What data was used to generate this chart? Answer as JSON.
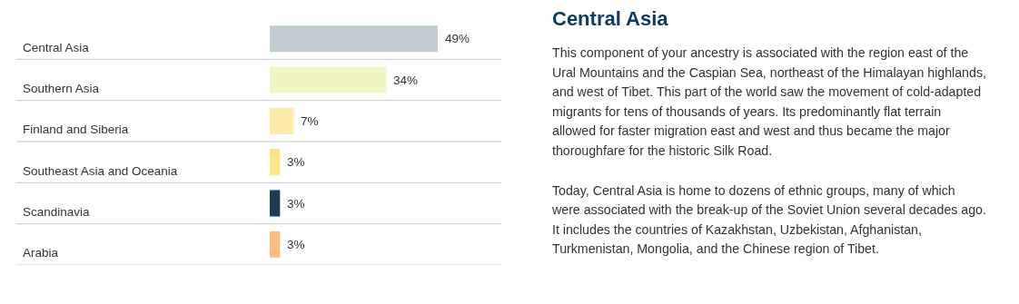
{
  "chart_data": [
    {
      "type": "bar",
      "orientation": "horizontal",
      "categories": [
        "Central Asia",
        "Southern Asia",
        "Finland and Siberia",
        "Southeast Asia and Oceania",
        "Scandinavia",
        "Arabia"
      ],
      "values": [
        49,
        34,
        7,
        3,
        3,
        3
      ],
      "colors": [
        "#c2cdd2",
        "#f1f4c3",
        "#feebab",
        "#fee587",
        "#1d3a56",
        "#fbbc7f"
      ],
      "value_labels": [
        "49%",
        "34%",
        "7%",
        "3%",
        "3%",
        "3%"
      ],
      "grid": false,
      "tick_labels": false
    },
    {
      "type": "other",
      "title": "Central Asia",
      "annotations": [
        "This component of your ancestry is associated with the region east of the Ural Mountains and the Caspian Sea, northeast of the Himalayan highlands, and west of Tibet. This part of the world saw the movement of cold-adapted migrants for tens of thousands of years. Its predominantly flat terrain allowed for faster migration east and west and thus became the major thoroughfare for the historic Silk Road.",
        "Today, Central Asia is home to dozens of ethnic groups, many of which were associated with the break-up of the Soviet Union several decades ago. It includes the countries of Kazakhstan, Uzbekistan, Afghanistan, Turkmenistan, Mongolia, and the Chinese region of Tibet."
      ]
    }
  ]
}
